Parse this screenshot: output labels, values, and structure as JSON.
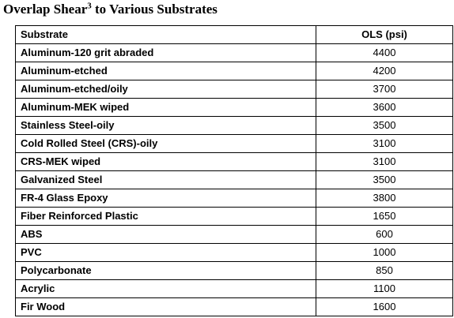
{
  "title": {
    "text": "Overlap Shear",
    "superscript": "3",
    "suffix": " to Various Substrates"
  },
  "table": {
    "headers": {
      "substrate": "Substrate",
      "ols": "OLS (psi)"
    },
    "rows": [
      {
        "substrate": "Aluminum-120 grit abraded",
        "ols": "4400"
      },
      {
        "substrate": "Aluminum-etched",
        "ols": "4200"
      },
      {
        "substrate": "Aluminum-etched/oily",
        "ols": "3700"
      },
      {
        "substrate": "Aluminum-MEK wiped",
        "ols": "3600"
      },
      {
        "substrate": "Stainless Steel-oily",
        "ols": "3500"
      },
      {
        "substrate": "Cold Rolled Steel (CRS)-oily",
        "ols": "3100"
      },
      {
        "substrate": "CRS-MEK wiped",
        "ols": "3100"
      },
      {
        "substrate": "Galvanized Steel",
        "ols": "3500"
      },
      {
        "substrate": "FR-4 Glass Epoxy",
        "ols": "3800"
      },
      {
        "substrate": "Fiber Reinforced Plastic",
        "ols": "1650"
      },
      {
        "substrate": "ABS",
        "ols": "600"
      },
      {
        "substrate": "PVC",
        "ols": "1000"
      },
      {
        "substrate": "Polycarbonate",
        "ols": "850"
      },
      {
        "substrate": "Acrylic",
        "ols": "1100"
      },
      {
        "substrate": "Fir Wood",
        "ols": "1600"
      }
    ]
  }
}
